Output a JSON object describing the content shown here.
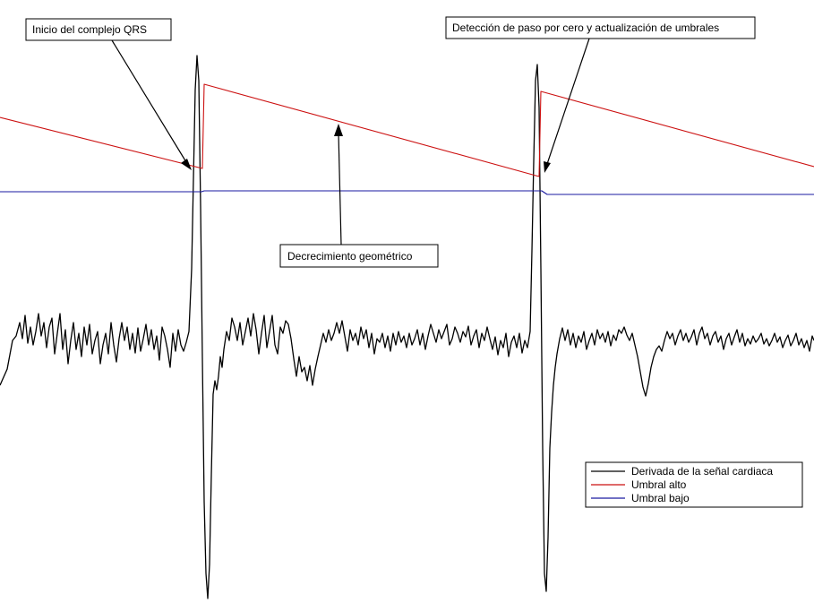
{
  "chart_data": {
    "type": "line",
    "title": "",
    "xlabel": "",
    "ylabel": "",
    "grid": false,
    "legend_position": "bottom-right",
    "colors": {
      "derivative": "#000000",
      "high_threshold": "#cc1111",
      "low_threshold": "#1a1aa0"
    },
    "series": [
      {
        "key": "derivative",
        "name": "Derivada de la señal cardiaca",
        "points": [
          [
            0,
            430
          ],
          [
            8,
            412
          ],
          [
            14,
            380
          ],
          [
            18,
            375
          ],
          [
            22,
            360
          ],
          [
            25,
            378
          ],
          [
            28,
            352
          ],
          [
            31,
            383
          ],
          [
            34,
            365
          ],
          [
            37,
            385
          ],
          [
            40,
            370
          ],
          [
            43,
            350
          ],
          [
            46,
            375
          ],
          [
            49,
            360
          ],
          [
            52,
            388
          ],
          [
            55,
            365
          ],
          [
            58,
            355
          ],
          [
            61,
            395
          ],
          [
            64,
            372
          ],
          [
            67,
            350
          ],
          [
            70,
            390
          ],
          [
            73,
            368
          ],
          [
            76,
            406
          ],
          [
            79,
            380
          ],
          [
            82,
            360
          ],
          [
            85,
            390
          ],
          [
            88,
            372
          ],
          [
            91,
            398
          ],
          [
            94,
            365
          ],
          [
            97,
            385
          ],
          [
            100,
            362
          ],
          [
            103,
            395
          ],
          [
            106,
            380
          ],
          [
            109,
            370
          ],
          [
            112,
            406
          ],
          [
            115,
            385
          ],
          [
            118,
            372
          ],
          [
            121,
            395
          ],
          [
            124,
            360
          ],
          [
            127,
            385
          ],
          [
            130,
            404
          ],
          [
            133,
            378
          ],
          [
            136,
            360
          ],
          [
            139,
            380
          ],
          [
            142,
            365
          ],
          [
            145,
            390
          ],
          [
            148,
            372
          ],
          [
            151,
            394
          ],
          [
            154,
            366
          ],
          [
            157,
            392
          ],
          [
            160,
            378
          ],
          [
            163,
            362
          ],
          [
            166,
            385
          ],
          [
            169,
            368
          ],
          [
            172,
            390
          ],
          [
            175,
            375
          ],
          [
            178,
            402
          ],
          [
            181,
            365
          ],
          [
            184,
            375
          ],
          [
            187,
            390
          ],
          [
            190,
            410
          ],
          [
            193,
            372
          ],
          [
            196,
            392
          ],
          [
            199,
            368
          ],
          [
            202,
            385
          ],
          [
            205,
            392
          ],
          [
            208,
            382
          ],
          [
            211,
            370
          ],
          [
            214,
            300
          ],
          [
            216,
            200
          ],
          [
            218,
            100
          ],
          [
            220,
            62
          ],
          [
            222,
            90
          ],
          [
            224,
            230
          ],
          [
            226,
            400
          ],
          [
            228,
            560
          ],
          [
            230,
            640
          ],
          [
            232,
            668
          ],
          [
            234,
            630
          ],
          [
            236,
            530
          ],
          [
            238,
            440
          ],
          [
            240,
            425
          ],
          [
            242,
            435
          ],
          [
            244,
            420
          ],
          [
            246,
            398
          ],
          [
            248,
            410
          ],
          [
            250,
            390
          ],
          [
            253,
            370
          ],
          [
            256,
            380
          ],
          [
            259,
            355
          ],
          [
            262,
            365
          ],
          [
            265,
            380
          ],
          [
            268,
            360
          ],
          [
            271,
            385
          ],
          [
            274,
            370
          ],
          [
            277,
            355
          ],
          [
            280,
            375
          ],
          [
            283,
            350
          ],
          [
            286,
            368
          ],
          [
            289,
            395
          ],
          [
            292,
            372
          ],
          [
            295,
            352
          ],
          [
            298,
            388
          ],
          [
            301,
            370
          ],
          [
            304,
            352
          ],
          [
            307,
            385
          ],
          [
            310,
            395
          ],
          [
            313,
            365
          ],
          [
            316,
            372
          ],
          [
            319,
            358
          ],
          [
            322,
            362
          ],
          [
            325,
            378
          ],
          [
            328,
            400
          ],
          [
            331,
            420
          ],
          [
            334,
            398
          ],
          [
            337,
            415
          ],
          [
            340,
            410
          ],
          [
            343,
            425
          ],
          [
            346,
            408
          ],
          [
            349,
            430
          ],
          [
            352,
            412
          ],
          [
            355,
            398
          ],
          [
            358,
            385
          ],
          [
            361,
            372
          ],
          [
            364,
            382
          ],
          [
            367,
            368
          ],
          [
            370,
            380
          ],
          [
            373,
            372
          ],
          [
            376,
            360
          ],
          [
            379,
            372
          ],
          [
            382,
            358
          ],
          [
            385,
            375
          ],
          [
            388,
            392
          ],
          [
            391,
            368
          ],
          [
            394,
            380
          ],
          [
            397,
            372
          ],
          [
            400,
            385
          ],
          [
            403,
            365
          ],
          [
            406,
            378
          ],
          [
            409,
            368
          ],
          [
            412,
            388
          ],
          [
            415,
            372
          ],
          [
            418,
            395
          ],
          [
            421,
            378
          ],
          [
            424,
            382
          ],
          [
            427,
            372
          ],
          [
            430,
            388
          ],
          [
            433,
            375
          ],
          [
            436,
            392
          ],
          [
            439,
            372
          ],
          [
            442,
            385
          ],
          [
            445,
            370
          ],
          [
            448,
            382
          ],
          [
            451,
            375
          ],
          [
            454,
            388
          ],
          [
            457,
            372
          ],
          [
            460,
            385
          ],
          [
            463,
            378
          ],
          [
            466,
            368
          ],
          [
            469,
            385
          ],
          [
            472,
            372
          ],
          [
            475,
            390
          ],
          [
            478,
            375
          ],
          [
            481,
            362
          ],
          [
            484,
            372
          ],
          [
            487,
            382
          ],
          [
            490,
            368
          ],
          [
            493,
            378
          ],
          [
            496,
            370
          ],
          [
            499,
            362
          ],
          [
            502,
            385
          ],
          [
            505,
            378
          ],
          [
            508,
            365
          ],
          [
            511,
            372
          ],
          [
            514,
            382
          ],
          [
            517,
            370
          ],
          [
            520,
            376
          ],
          [
            523,
            364
          ],
          [
            526,
            385
          ],
          [
            529,
            375
          ],
          [
            532,
            368
          ],
          [
            535,
            388
          ],
          [
            538,
            372
          ],
          [
            541,
            380
          ],
          [
            544,
            365
          ],
          [
            547,
            378
          ],
          [
            550,
            390
          ],
          [
            553,
            376
          ],
          [
            556,
            396
          ],
          [
            559,
            380
          ],
          [
            562,
            388
          ],
          [
            565,
            372
          ],
          [
            568,
            398
          ],
          [
            571,
            382
          ],
          [
            574,
            375
          ],
          [
            577,
            388
          ],
          [
            580,
            372
          ],
          [
            583,
            394
          ],
          [
            586,
            380
          ],
          [
            589,
            388
          ],
          [
            592,
            370
          ],
          [
            594,
            280
          ],
          [
            596,
            180
          ],
          [
            598,
            90
          ],
          [
            600,
            72
          ],
          [
            602,
            120
          ],
          [
            604,
            300
          ],
          [
            606,
            500
          ],
          [
            608,
            640
          ],
          [
            610,
            660
          ],
          [
            612,
            600
          ],
          [
            614,
            500
          ],
          [
            616,
            460
          ],
          [
            618,
            430
          ],
          [
            620,
            410
          ],
          [
            622,
            395
          ],
          [
            625,
            378
          ],
          [
            628,
            366
          ],
          [
            631,
            380
          ],
          [
            634,
            368
          ],
          [
            637,
            385
          ],
          [
            640,
            372
          ],
          [
            643,
            388
          ],
          [
            646,
            375
          ],
          [
            649,
            382
          ],
          [
            652,
            370
          ],
          [
            655,
            390
          ],
          [
            658,
            380
          ],
          [
            661,
            372
          ],
          [
            664,
            385
          ],
          [
            667,
            368
          ],
          [
            670,
            378
          ],
          [
            673,
            372
          ],
          [
            676,
            382
          ],
          [
            679,
            370
          ],
          [
            682,
            386
          ],
          [
            685,
            374
          ],
          [
            688,
            380
          ],
          [
            691,
            368
          ],
          [
            694,
            372
          ],
          [
            697,
            365
          ],
          [
            700,
            374
          ],
          [
            703,
            380
          ],
          [
            706,
            372
          ],
          [
            709,
            385
          ],
          [
            712,
            398
          ],
          [
            715,
            415
          ],
          [
            718,
            432
          ],
          [
            721,
            442
          ],
          [
            724,
            428
          ],
          [
            727,
            410
          ],
          [
            730,
            398
          ],
          [
            733,
            390
          ],
          [
            736,
            386
          ],
          [
            739,
            392
          ],
          [
            742,
            380
          ],
          [
            745,
            370
          ],
          [
            748,
            378
          ],
          [
            751,
            372
          ],
          [
            754,
            385
          ],
          [
            757,
            375
          ],
          [
            760,
            368
          ],
          [
            763,
            380
          ],
          [
            766,
            372
          ],
          [
            769,
            382
          ],
          [
            772,
            376
          ],
          [
            775,
            368
          ],
          [
            778,
            385
          ],
          [
            781,
            372
          ],
          [
            784,
            365
          ],
          [
            787,
            378
          ],
          [
            790,
            372
          ],
          [
            793,
            385
          ],
          [
            796,
            375
          ],
          [
            799,
            370
          ],
          [
            802,
            382
          ],
          [
            805,
            375
          ],
          [
            808,
            390
          ],
          [
            811,
            378
          ],
          [
            814,
            372
          ],
          [
            817,
            385
          ],
          [
            820,
            376
          ],
          [
            823,
            368
          ],
          [
            826,
            382
          ],
          [
            829,
            372
          ],
          [
            832,
            386
          ],
          [
            835,
            378
          ],
          [
            838,
            384
          ],
          [
            841,
            375
          ],
          [
            844,
            382
          ],
          [
            847,
            378
          ],
          [
            850,
            372
          ],
          [
            853,
            384
          ],
          [
            856,
            378
          ],
          [
            859,
            386
          ],
          [
            862,
            380
          ],
          [
            865,
            372
          ],
          [
            868,
            382
          ],
          [
            871,
            376
          ],
          [
            874,
            388
          ],
          [
            877,
            380
          ],
          [
            880,
            374
          ],
          [
            883,
            386
          ],
          [
            886,
            380
          ],
          [
            889,
            372
          ],
          [
            892,
            385
          ],
          [
            895,
            378
          ],
          [
            898,
            388
          ],
          [
            901,
            380
          ],
          [
            904,
            392
          ],
          [
            907,
            375
          ],
          [
            909,
            380
          ]
        ]
      },
      {
        "key": "high_threshold",
        "name": "Umbral alto",
        "points": [
          [
            0,
            131
          ],
          [
            226,
            188
          ],
          [
            228,
            94
          ],
          [
            602,
            197
          ],
          [
            604,
            102
          ],
          [
            909,
            186
          ]
        ]
      },
      {
        "key": "low_threshold",
        "name": "Umbral bajo",
        "points": [
          [
            0,
            214
          ],
          [
            225,
            214
          ],
          [
            228,
            213
          ],
          [
            605,
            213
          ],
          [
            611,
            217
          ],
          [
            909,
            217
          ]
        ]
      }
    ],
    "annotations": [
      {
        "key": "qrs_onset",
        "text": "Inicio del complejo QRS"
      },
      {
        "key": "zero_crossing",
        "text": "Detección de paso por cero y actualización de umbrales"
      },
      {
        "key": "geometric_decay",
        "text": "Decrecimiento geométrico"
      }
    ]
  }
}
